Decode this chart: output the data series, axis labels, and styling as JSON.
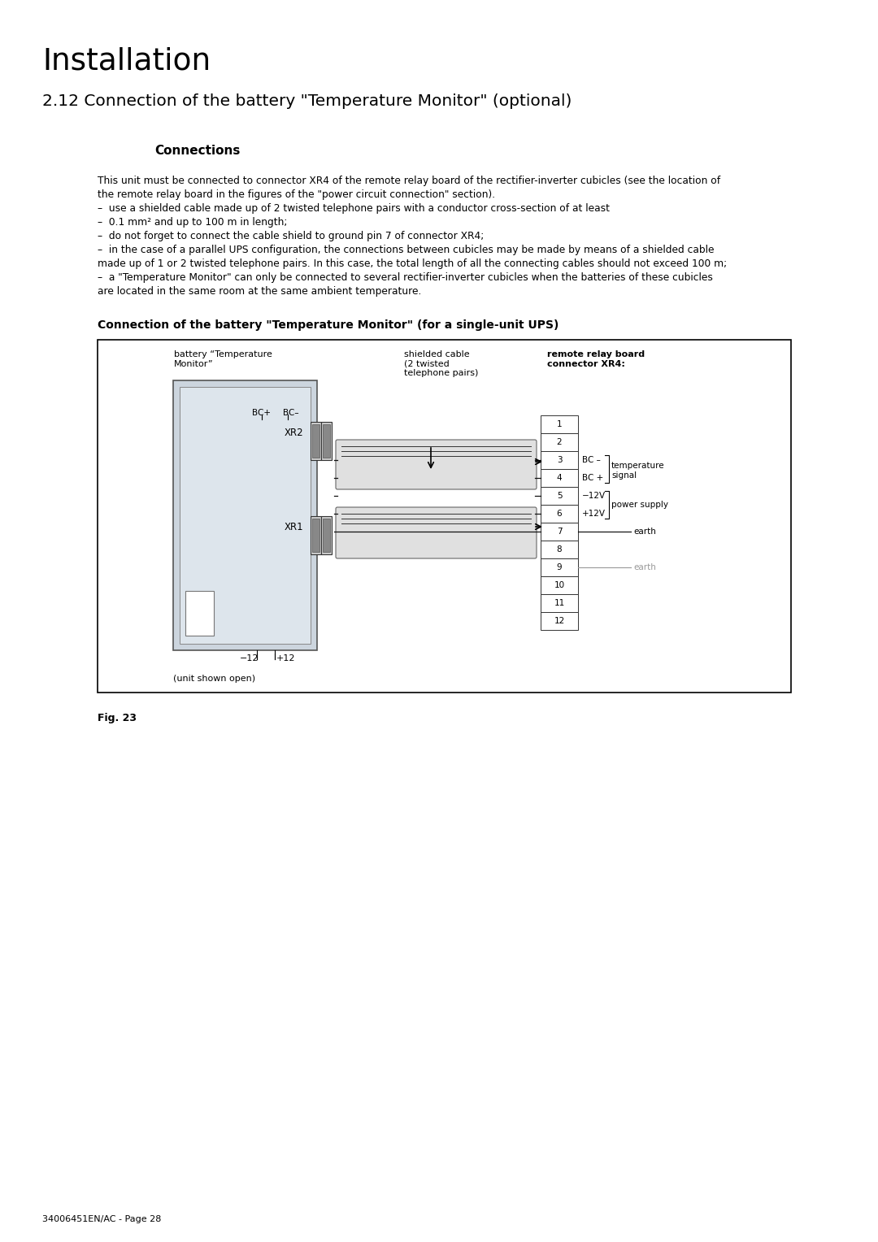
{
  "title": "Installation",
  "section_title": "2.12 Connection of the battery \"Temperature Monitor\" (optional)",
  "subsection_title": "Connections",
  "body_lines": [
    "This unit must be connected to connector XR4 of the remote relay board of the rectifier-inverter cubicles (see the location of",
    "the remote relay board in the figures of the \"power circuit connection\" section).",
    "–  use a shielded cable made up of 2 twisted telephone pairs with a conductor cross-section of at least",
    "–  0.1 mm² and up to 100 m in length;",
    "–  do not forget to connect the cable shield to ground pin 7 of connector XR4;",
    "–  in the case of a parallel UPS configuration, the connections between cubicles may be made by means of a shielded cable",
    "made up of 1 or 2 twisted telephone pairs. In this case, the total length of all the connecting cables should not exceed 100 m;",
    "–  a \"Temperature Monitor\" can only be connected to several rectifier-inverter cubicles when the batteries of these cubicles",
    "are located in the same room at the same ambient temperature."
  ],
  "diagram_section_title": "Connection of the battery \"Temperature Monitor\" (for a single-unit UPS)",
  "fig_caption": "Fig. 23",
  "footer": "34006451EN/AC - Page 28",
  "bg_color": "#ffffff",
  "text_color": "#000000"
}
